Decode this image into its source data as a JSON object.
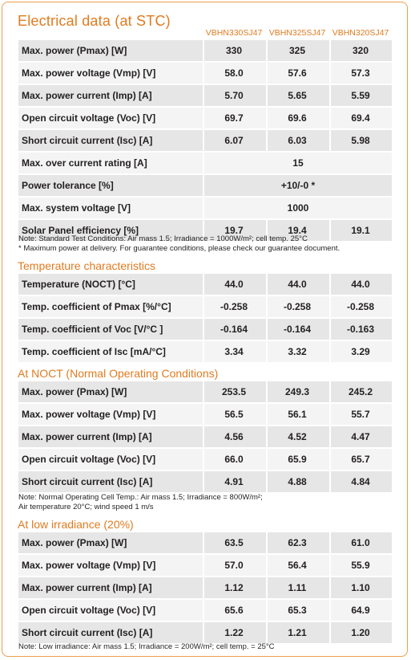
{
  "title": "Electrical data (at STC)",
  "models": [
    "VBHN330SJ47",
    "VBHN325SJ47",
    "VBHN320SJ47"
  ],
  "stc_rows": [
    {
      "label": "Max. power (Pmax) [W]",
      "values": [
        "330",
        "325",
        "320"
      ]
    },
    {
      "label": "Max. power voltage (Vmp) [V]",
      "values": [
        "58.0",
        "57.6",
        "57.3"
      ]
    },
    {
      "label": "Max. power current (Imp) [A]",
      "values": [
        "5.70",
        "5.65",
        "5.59"
      ]
    },
    {
      "label": "Open circuit voltage (Voc) [V]",
      "values": [
        "69.7",
        "69.6",
        "69.4"
      ]
    },
    {
      "label": "Short circuit current (Isc) [A]",
      "values": [
        "6.07",
        "6.03",
        "5.98"
      ]
    },
    {
      "label": "Max. over current rating [A]",
      "span_value": "15"
    },
    {
      "label": "Power tolerance [%]",
      "span_value": "+10/-0 *"
    },
    {
      "label": "Max. system voltage [V]",
      "span_value": "1000"
    },
    {
      "label": "Solar Panel efficiency [%]",
      "values": [
        "19.7",
        "19.4",
        "19.1"
      ]
    }
  ],
  "stc_note_1": "Note: Standard Test Conditions: Air mass 1.5; Irradiance = 1000W/m²; cell temp. 25°C",
  "stc_note_2": "* Maximum power at delivery. For guarantee conditions, please check our guarantee document.",
  "temp_title": "Temperature characteristics",
  "temp_rows": [
    {
      "label": "Temperature (NOCT) [°C]",
      "values": [
        "44.0",
        "44.0",
        "44.0"
      ]
    },
    {
      "label": "Temp. coefficient of Pmax  [%/°C]",
      "values": [
        "-0.258",
        "-0.258",
        "-0.258"
      ]
    },
    {
      "label": "Temp. coefficient of Voc [V/°C ]",
      "values": [
        "-0.164",
        "-0.164",
        "-0.163"
      ]
    },
    {
      "label": "Temp. coefficient of Isc [mA/°C]",
      "values": [
        "3.34",
        "3.32",
        "3.29"
      ]
    }
  ],
  "noct_title": "At NOCT (Normal Operating Conditions)",
  "noct_rows": [
    {
      "label": "Max. power (Pmax) [W]",
      "values": [
        "253.5",
        "249.3",
        "245.2"
      ]
    },
    {
      "label": "Max. power voltage (Vmp) [V]",
      "values": [
        "56.5",
        "56.1",
        "55.7"
      ]
    },
    {
      "label": "Max. power current (Imp) [A]",
      "values": [
        "4.56",
        "4.52",
        "4.47"
      ]
    },
    {
      "label": "Open circuit voltage (Voc) [V]",
      "values": [
        "66.0",
        "65.9",
        "65.7"
      ]
    },
    {
      "label": "Short circuit current (Isc) [A]",
      "values": [
        "4.91",
        "4.88",
        "4.84"
      ]
    }
  ],
  "noct_note_1": "Note: Normal Operating Cell Temp.: Air mass 1.5; Irradiance = 800W/m²;",
  "noct_note_2": "Air temperature 20°C; wind speed 1 m/s",
  "low_title": "At low irradiance (20%)",
  "low_rows": [
    {
      "label": "Max. power (Pmax) [W]",
      "values": [
        "63.5",
        "62.3",
        "61.0"
      ]
    },
    {
      "label": "Max. power voltage (Vmp) [V]",
      "values": [
        "57.0",
        "56.4",
        "55.9"
      ]
    },
    {
      "label": "Max. power current (Imp) [A]",
      "values": [
        "1.12",
        "1.11",
        "1.10"
      ]
    },
    {
      "label": "Open circuit voltage (Voc) [V]",
      "values": [
        "65.6",
        "65.3",
        "64.9"
      ]
    },
    {
      "label": "Short circuit current (Isc) [A]",
      "values": [
        "1.22",
        "1.21",
        "1.20"
      ]
    }
  ],
  "low_note": "Note: Low irradiance: Air mass 1.5; Irradiance = 200W/m²; cell temp. = 25°C",
  "colors": {
    "accent": "#e07b1f",
    "row_dark": "#e6e6e7",
    "row_light": "#f4f4f5",
    "frame": "#e8a14a"
  }
}
